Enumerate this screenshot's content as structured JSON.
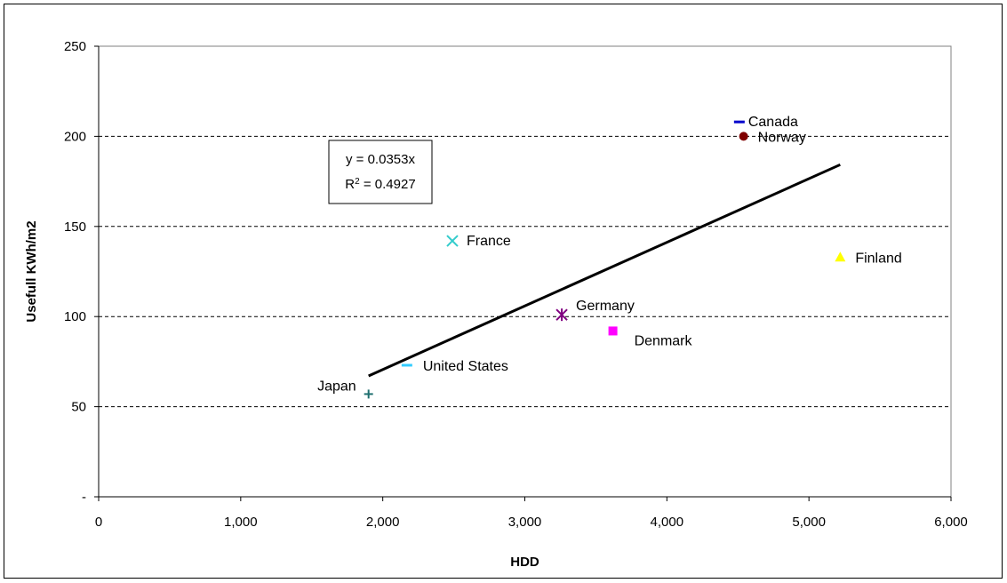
{
  "chart_data": {
    "type": "scatter",
    "xlabel": "HDD",
    "ylabel": "Usefull KWh/m2",
    "xlim": [
      0,
      6000
    ],
    "ylim": [
      0,
      250
    ],
    "x_ticks": [
      0,
      1000,
      2000,
      3000,
      4000,
      5000,
      6000
    ],
    "x_tick_labels": [
      "0",
      "1,000",
      "2,000",
      "3,000",
      "4,000",
      "5,000",
      "6,000"
    ],
    "y_ticks": [
      0,
      50,
      100,
      150,
      200,
      250
    ],
    "y_tick_labels": [
      "-",
      "50",
      "100",
      "150",
      "200",
      "250"
    ],
    "grid": "horizontal dashed",
    "points": [
      {
        "label": "Japan",
        "x": 1900,
        "y": 57,
        "marker": "plus",
        "color": "#1f6f6f"
      },
      {
        "label": "United States",
        "x": 2170,
        "y": 73,
        "marker": "dash",
        "color": "#33ccff"
      },
      {
        "label": "France",
        "x": 2490,
        "y": 142,
        "marker": "x",
        "color": "#33cccc"
      },
      {
        "label": "Germany",
        "x": 3260,
        "y": 101,
        "marker": "star",
        "color": "#800080"
      },
      {
        "label": "Denmark",
        "x": 3620,
        "y": 92,
        "marker": "square",
        "color": "#ff00ff"
      },
      {
        "label": "Canada",
        "x": 4510,
        "y": 208,
        "marker": "dash",
        "color": "#0000cc"
      },
      {
        "label": "Norway",
        "x": 4540,
        "y": 200,
        "marker": "circle",
        "color": "#800000"
      },
      {
        "label": "Finland",
        "x": 5220,
        "y": 133,
        "marker": "triangle",
        "color": "#ffff00"
      }
    ],
    "trendline": {
      "equation": "y = 0.0353x",
      "r2_prefix": "R",
      "r2_suffix": " = 0.4927",
      "x_range": [
        1900,
        5220
      ],
      "slope": 0.0353,
      "intercept": 0
    }
  }
}
